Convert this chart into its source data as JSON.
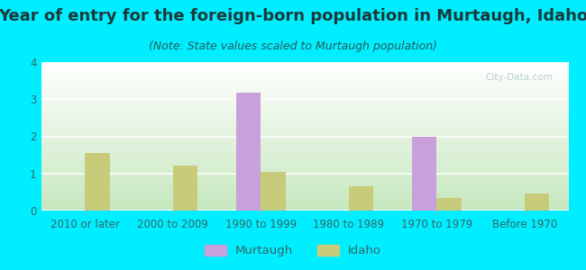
{
  "title": "Year of entry for the foreign-born population in Murtaugh, Idaho",
  "subtitle": "(Note: State values scaled to Murtaugh population)",
  "categories": [
    "2010 or later",
    "2000 to 2009",
    "1990 to 1999",
    "1980 to 1989",
    "1970 to 1979",
    "Before 1970"
  ],
  "murtaugh_values": [
    0,
    0,
    3.17,
    0,
    2.0,
    0
  ],
  "idaho_values": [
    1.55,
    1.22,
    1.05,
    0.65,
    0.35,
    0.45
  ],
  "murtaugh_color": "#c9a0dc",
  "idaho_color": "#c8cc7a",
  "background_color": "#00eeff",
  "ylim": [
    0,
    4
  ],
  "yticks": [
    0,
    1,
    2,
    3,
    4
  ],
  "bar_width": 0.28,
  "title_fontsize": 13,
  "subtitle_fontsize": 9,
  "tick_fontsize": 8.5,
  "legend_labels": [
    "Murtaugh",
    "Idaho"
  ],
  "title_color": "#1a3a3a",
  "subtitle_color": "#2a5a5a",
  "tick_color": "#336666"
}
